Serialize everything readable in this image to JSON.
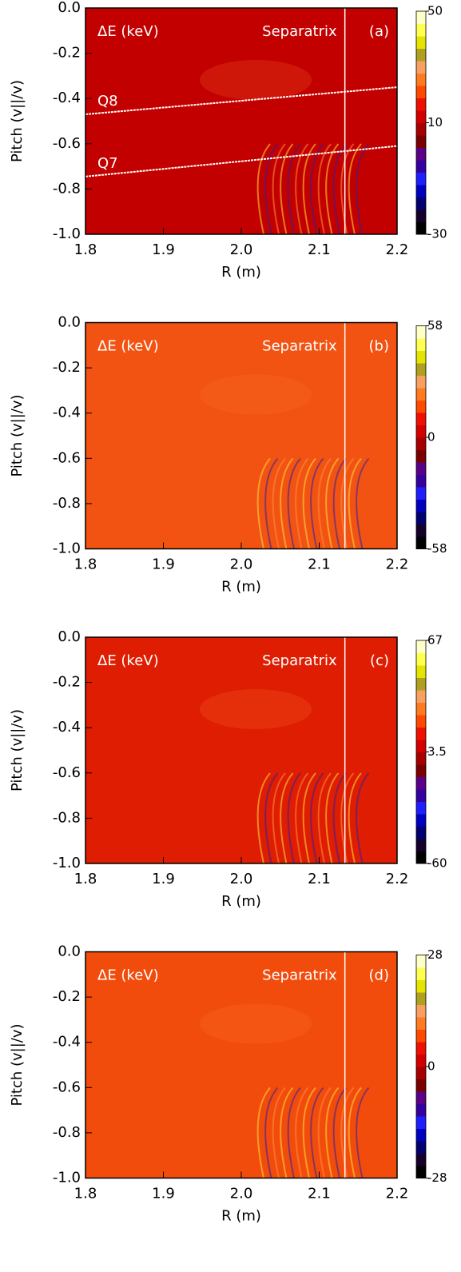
{
  "chart_data": [
    {
      "type": "heatmap",
      "title": "ΔE (keV)",
      "annotation": "Separatrix",
      "panel": "(a)",
      "xlabel": "R (m)",
      "ylabel": "Pitch (v||/v)",
      "xlim": [
        1.8,
        2.2
      ],
      "xticks": [
        1.8,
        1.9,
        {
          "value": 2,
          "label": "2.0"
        },
        2.1,
        2.2
      ],
      "ylim": [
        -1,
        0
      ],
      "yticks": [
        {
          "value": 0,
          "label": "0.0"
        },
        -0.2,
        -0.4,
        -0.6,
        -0.8,
        {
          "value": -1,
          "label": "-1.0"
        }
      ],
      "separatrix_x": 2.133,
      "background": "#c30000",
      "lines": [
        {
          "label": "Q8",
          "x": [
            1.8,
            2.2
          ],
          "y": [
            -0.47,
            -0.35
          ]
        },
        {
          "label": "Q7",
          "x": [
            1.8,
            2.2
          ],
          "y": [
            -0.745,
            -0.61
          ]
        }
      ],
      "colorbar": {
        "lim": [
          -30,
          50
        ],
        "ticks": [
          -30,
          10,
          50
        ]
      }
    },
    {
      "type": "heatmap",
      "title": "ΔE (keV)",
      "annotation": "Separatrix",
      "panel": "(b)",
      "xlabel": "R (m)",
      "ylabel": "Pitch (v||/v)",
      "xlim": [
        1.8,
        2.2
      ],
      "xticks": [
        1.8,
        1.9,
        {
          "value": 2,
          "label": "2.0"
        },
        2.1,
        2.2
      ],
      "ylim": [
        -1,
        0
      ],
      "yticks": [
        {
          "value": 0,
          "label": "0.0"
        },
        -0.2,
        -0.4,
        -0.6,
        -0.8,
        {
          "value": -1,
          "label": "-1.0"
        }
      ],
      "separatrix_x": 2.133,
      "background": "#f25312",
      "colorbar": {
        "lim": [
          -58,
          58
        ],
        "ticks": [
          -58,
          0,
          58
        ]
      }
    },
    {
      "type": "heatmap",
      "title": "ΔE (keV)",
      "annotation": "Separatrix",
      "panel": "(c)",
      "xlabel": "R (m)",
      "ylabel": "Pitch (v||/v)",
      "xlim": [
        1.8,
        2.2
      ],
      "xticks": [
        1.8,
        1.9,
        {
          "value": 2,
          "label": "2.0"
        },
        2.1,
        2.2
      ],
      "ylim": [
        -1,
        0
      ],
      "yticks": [
        {
          "value": 0,
          "label": "0.0"
        },
        -0.2,
        -0.4,
        -0.6,
        -0.8,
        {
          "value": -1,
          "label": "-1.0"
        }
      ],
      "separatrix_x": 2.133,
      "background": "#de1d02",
      "colorbar": {
        "lim": [
          -60,
          67
        ],
        "ticks": [
          -60,
          3.5,
          67
        ]
      }
    },
    {
      "type": "heatmap",
      "title": "ΔE (keV)",
      "annotation": "Separatrix",
      "panel": "(d)",
      "xlabel": "R (m)",
      "ylabel": "Pitch (v||/v)",
      "xlim": [
        1.8,
        2.2
      ],
      "xticks": [
        1.8,
        1.9,
        {
          "value": 2,
          "label": "2.0"
        },
        2.1,
        2.2
      ],
      "ylim": [
        -1,
        0
      ],
      "yticks": [
        {
          "value": 0,
          "label": "0.0"
        },
        -0.2,
        -0.4,
        -0.6,
        -0.8,
        {
          "value": -1,
          "label": "-1.0"
        }
      ],
      "separatrix_x": 2.133,
      "background": "#f24c0c",
      "colorbar": {
        "lim": [
          -28,
          28
        ],
        "ticks": [
          -28,
          0,
          28
        ]
      }
    }
  ]
}
